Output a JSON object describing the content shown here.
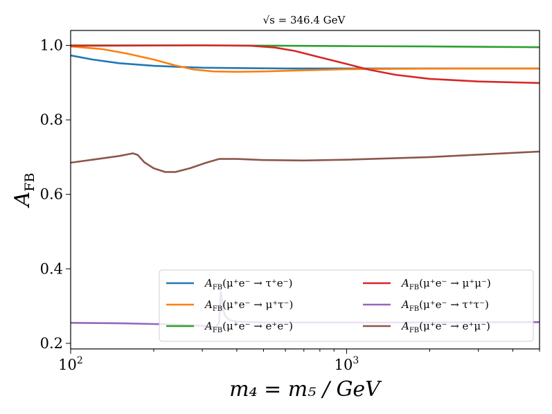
{
  "chart_data": {
    "type": "line",
    "title": "√s = 346.4 GeV",
    "xlabel": "m₄ = m₅ / GeV",
    "ylabel": "A_FB",
    "xscale": "log",
    "xlim": [
      100,
      5000
    ],
    "ylim": [
      0.185,
      1.04
    ],
    "grid": false,
    "legend_position": "lower-right",
    "x_ticks": [
      {
        "value": 100,
        "base": "10",
        "exp": "2"
      },
      {
        "value": 1000,
        "base": "10",
        "exp": "3"
      }
    ],
    "y_ticks": [
      {
        "value": 0.2,
        "label": "0.2"
      },
      {
        "value": 0.4,
        "label": "0.4"
      },
      {
        "value": 0.6,
        "label": "0.6"
      },
      {
        "value": 0.8,
        "label": "0.8"
      },
      {
        "value": 1.0,
        "label": "1.0"
      }
    ],
    "series": [
      {
        "name": "A_FB(μ⁺e⁻ → τ⁺e⁻)",
        "color": "#1f77b4",
        "points": [
          [
            100,
            0.973
          ],
          [
            120,
            0.962
          ],
          [
            150,
            0.952
          ],
          [
            200,
            0.945
          ],
          [
            250,
            0.942
          ],
          [
            300,
            0.94
          ],
          [
            400,
            0.939
          ],
          [
            600,
            0.938
          ],
          [
            1000,
            0.938
          ],
          [
            2000,
            0.938
          ],
          [
            5000,
            0.938
          ]
        ]
      },
      {
        "name": "A_FB(μ⁺e⁻ → μ⁺τ⁻)",
        "color": "#ff7f0e",
        "points": [
          [
            100,
            0.997
          ],
          [
            130,
            0.99
          ],
          [
            160,
            0.978
          ],
          [
            200,
            0.962
          ],
          [
            240,
            0.946
          ],
          [
            280,
            0.935
          ],
          [
            330,
            0.93
          ],
          [
            400,
            0.929
          ],
          [
            500,
            0.93
          ],
          [
            700,
            0.933
          ],
          [
            1000,
            0.936
          ],
          [
            1500,
            0.937
          ],
          [
            2500,
            0.938
          ],
          [
            5000,
            0.938
          ]
        ]
      },
      {
        "name": "A_FB(μ⁺e⁻ → e⁺e⁻)",
        "color": "#2ca02c",
        "points": [
          [
            100,
            1.0
          ],
          [
            300,
            1.0
          ],
          [
            600,
            0.999
          ],
          [
            1000,
            0.998
          ],
          [
            2000,
            0.997
          ],
          [
            5000,
            0.995
          ]
        ]
      },
      {
        "name": "A_FB(μ⁺e⁻ → μ⁺μ⁻)",
        "color": "#d62728",
        "points": [
          [
            100,
            0.999
          ],
          [
            300,
            1.0
          ],
          [
            450,
            0.999
          ],
          [
            550,
            0.994
          ],
          [
            650,
            0.985
          ],
          [
            800,
            0.968
          ],
          [
            1000,
            0.95
          ],
          [
            1200,
            0.935
          ],
          [
            1500,
            0.921
          ],
          [
            2000,
            0.91
          ],
          [
            3000,
            0.903
          ],
          [
            5000,
            0.899
          ]
        ]
      },
      {
        "name": "A_FB(μ⁺e⁻ → τ⁺τ⁻)",
        "color": "#9467bd",
        "points": [
          [
            100,
            0.255
          ],
          [
            150,
            0.254
          ],
          [
            200,
            0.252
          ],
          [
            250,
            0.25
          ],
          [
            300,
            0.247
          ],
          [
            320,
            0.245
          ],
          [
            335,
            0.243
          ],
          [
            345,
            0.255
          ],
          [
            350,
            0.338
          ],
          [
            355,
            0.3
          ],
          [
            362,
            0.275
          ],
          [
            375,
            0.263
          ],
          [
            400,
            0.258
          ],
          [
            500,
            0.256
          ],
          [
            1000,
            0.256
          ],
          [
            2000,
            0.256
          ],
          [
            5000,
            0.257
          ]
        ]
      },
      {
        "name": "A_FB(μ⁺e⁻ → e⁺μ⁻)",
        "color": "#8c564b",
        "points": [
          [
            100,
            0.685
          ],
          [
            120,
            0.693
          ],
          [
            150,
            0.703
          ],
          [
            168,
            0.71
          ],
          [
            175,
            0.706
          ],
          [
            185,
            0.686
          ],
          [
            200,
            0.67
          ],
          [
            220,
            0.66
          ],
          [
            240,
            0.66
          ],
          [
            270,
            0.67
          ],
          [
            310,
            0.685
          ],
          [
            345,
            0.695
          ],
          [
            400,
            0.695
          ],
          [
            500,
            0.692
          ],
          [
            700,
            0.691
          ],
          [
            1000,
            0.693
          ],
          [
            2000,
            0.7
          ],
          [
            5000,
            0.715
          ]
        ]
      }
    ]
  }
}
